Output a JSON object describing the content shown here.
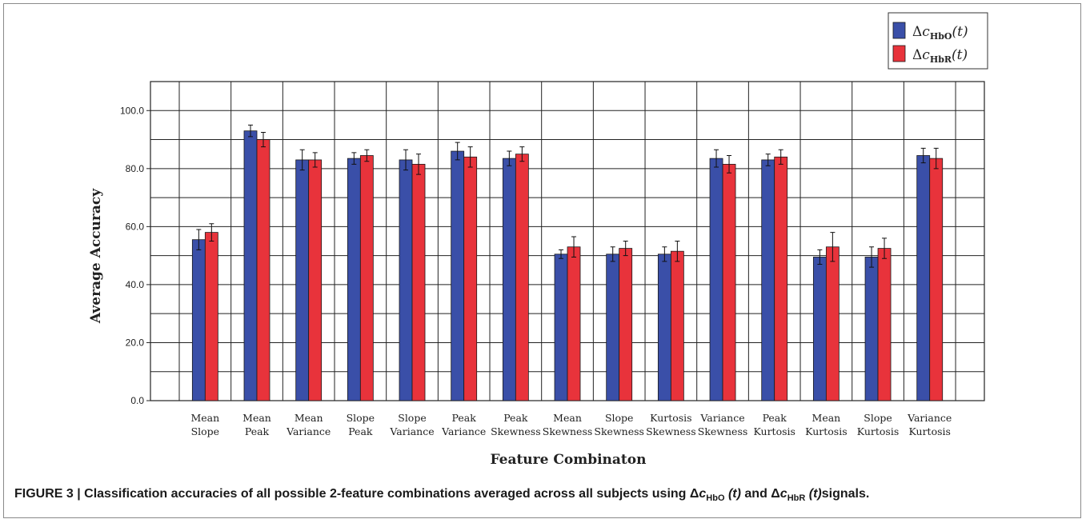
{
  "caption": {
    "prefix": "FIGURE 3 | Classification accuracies of all possible 2-feature combinations averaged across all subjects using ",
    "delta": "Δ",
    "c": "c",
    "sub_hbo": "HbO",
    "sub_hbr": "HbR",
    "t_hbo": " (t)",
    "and": " and ",
    "t_hbr": " (t)",
    "suffix": "signals."
  },
  "legend": {
    "items": [
      {
        "delta": "Δ",
        "c": "c",
        "sub": "HbO",
        "t": "(t)"
      },
      {
        "delta": "Δ",
        "c": "c",
        "sub": "HbR",
        "t": "(t)"
      }
    ]
  },
  "chart_data": {
    "type": "bar",
    "xlabel": "Feature Combinaton",
    "ylabel": "Average Accuracy",
    "ylim": [
      0,
      110
    ],
    "yticks": [
      "0.0",
      "20.0",
      "40.0",
      "60.0",
      "80.0",
      "100.0"
    ],
    "grid": true,
    "legend_position": "top-right",
    "categories": [
      [
        "Mean",
        "Slope"
      ],
      [
        "Mean",
        "Peak"
      ],
      [
        "Mean",
        "Variance"
      ],
      [
        "Slope",
        "Peak"
      ],
      [
        "Slope",
        "Variance"
      ],
      [
        "Peak",
        "Variance"
      ],
      [
        "Peak",
        "Skewness"
      ],
      [
        "Mean",
        "Skewness"
      ],
      [
        "Slope",
        "Skewness"
      ],
      [
        "Kurtosis",
        "Skewness"
      ],
      [
        "Variance",
        "Skewness"
      ],
      [
        "Peak",
        "Kurtosis"
      ],
      [
        "Mean",
        "Kurtosis"
      ],
      [
        "Slope",
        "Kurtosis"
      ],
      [
        "Variance",
        "Kurtosis"
      ]
    ],
    "series": [
      {
        "color": "#3a4fa8",
        "values": [
          55.5,
          93.0,
          83.0,
          83.5,
          83.0,
          86.0,
          83.5,
          50.5,
          50.5,
          50.5,
          83.5,
          83.0,
          49.5,
          49.5,
          84.5
        ],
        "errors": [
          3.5,
          2.0,
          3.5,
          2.0,
          3.5,
          3.0,
          2.5,
          1.5,
          2.5,
          2.5,
          3.0,
          2.0,
          2.5,
          3.5,
          2.5
        ]
      },
      {
        "color": "#e8333b",
        "values": [
          58.0,
          90.0,
          83.0,
          84.5,
          81.5,
          84.0,
          85.0,
          53.0,
          52.5,
          51.5,
          81.5,
          84.0,
          53.0,
          52.5,
          83.5
        ],
        "errors": [
          3.0,
          2.5,
          2.5,
          2.0,
          3.5,
          3.5,
          2.5,
          3.5,
          2.5,
          3.5,
          3.0,
          2.5,
          5.0,
          3.5,
          3.5
        ]
      }
    ]
  }
}
